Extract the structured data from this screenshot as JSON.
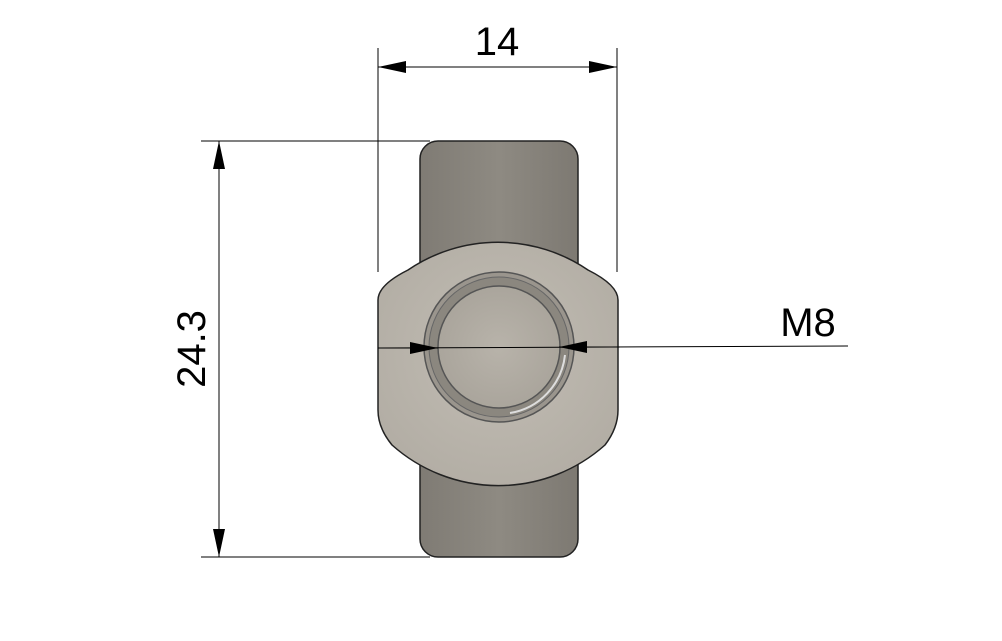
{
  "drawing": {
    "dimensions": {
      "width": "14",
      "height": "24.3",
      "thread": "M8"
    },
    "colors": {
      "part_body": "#8e8a82",
      "part_face": "#b9b4ab",
      "part_dark": "#6e6b65",
      "outline": "#1a1a1a",
      "dimension_line": "#000000",
      "background": "#ffffff"
    }
  }
}
